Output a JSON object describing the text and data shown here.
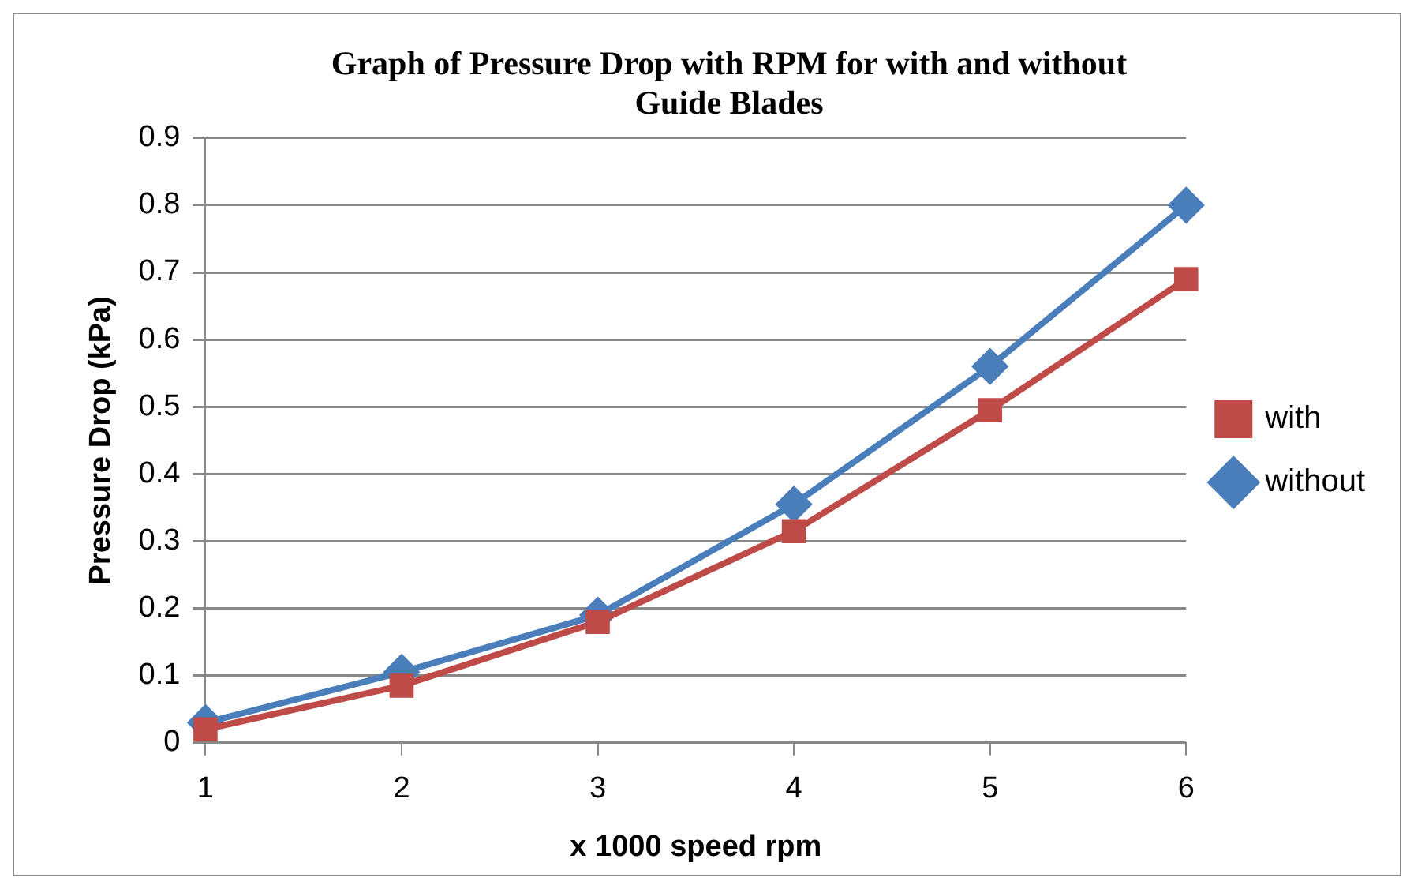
{
  "chart_data": {
    "type": "line",
    "title": "Graph of Pressure Drop with RPM for with and without Guide Blades",
    "xlabel": "x 1000 speed rpm",
    "ylabel": "Pressure Drop (kPa)",
    "categories": [
      "1",
      "2",
      "3",
      "4",
      "5",
      "6"
    ],
    "series": [
      {
        "name": "without",
        "color": "#4a7ebb",
        "marker": "diamond",
        "values": [
          0.03,
          0.105,
          0.19,
          0.355,
          0.56,
          0.8
        ]
      },
      {
        "name": "with",
        "color": "#be4b48",
        "marker": "square",
        "values": [
          0.02,
          0.085,
          0.18,
          0.315,
          0.495,
          0.69
        ]
      }
    ],
    "ylim": [
      0,
      0.9
    ],
    "yticks": [
      0,
      0.1,
      0.2,
      0.3,
      0.4,
      0.5,
      0.6,
      0.7,
      0.8,
      0.9
    ],
    "grid": "y",
    "legend": "right"
  }
}
